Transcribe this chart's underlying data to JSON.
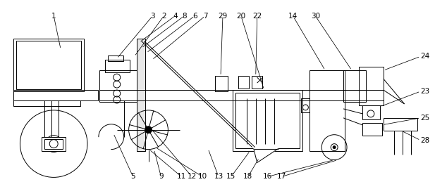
{
  "bg_color": "#ffffff",
  "line_color": "#000000",
  "figsize": [
    6.17,
    2.69
  ],
  "dpi": 100,
  "lw": 0.7,
  "top_labels": {
    "1": [
      0.135,
      0.94,
      0.11,
      0.74
    ],
    "3": [
      0.355,
      0.94,
      0.34,
      0.72
    ],
    "2": [
      0.378,
      0.94,
      0.375,
      0.67
    ],
    "4": [
      0.403,
      0.94,
      0.435,
      0.72
    ],
    "8": [
      0.423,
      0.94,
      0.448,
      0.68
    ],
    "6": [
      0.445,
      0.94,
      0.455,
      0.63
    ],
    "7": [
      0.464,
      0.94,
      0.468,
      0.6
    ],
    "29": [
      0.502,
      0.94,
      0.505,
      0.63
    ],
    "20": [
      0.535,
      0.94,
      0.545,
      0.62
    ],
    "22": [
      0.571,
      0.94,
      0.585,
      0.62
    ],
    "14": [
      0.641,
      0.94,
      0.69,
      0.62
    ],
    "30": [
      0.69,
      0.94,
      0.74,
      0.62
    ]
  },
  "right_labels": {
    "24": [
      0.895,
      0.72,
      0.845,
      0.63
    ],
    "23": [
      0.895,
      0.58,
      0.835,
      0.54
    ],
    "25": [
      0.895,
      0.46,
      0.845,
      0.43
    ],
    "28": [
      0.895,
      0.35,
      0.875,
      0.39
    ]
  },
  "bottom_labels": {
    "5": [
      0.305,
      0.055,
      0.31,
      0.3
    ],
    "9": [
      0.37,
      0.055,
      0.38,
      0.3
    ],
    "11": [
      0.415,
      0.055,
      0.415,
      0.27
    ],
    "12": [
      0.438,
      0.055,
      0.433,
      0.3
    ],
    "10": [
      0.456,
      0.055,
      0.452,
      0.28
    ],
    "13": [
      0.493,
      0.055,
      0.488,
      0.28
    ],
    "15": [
      0.523,
      0.055,
      0.518,
      0.3
    ],
    "18": [
      0.561,
      0.055,
      0.555,
      0.37
    ],
    "16": [
      0.608,
      0.055,
      0.607,
      0.33
    ],
    "17": [
      0.638,
      0.055,
      0.638,
      0.34
    ]
  }
}
